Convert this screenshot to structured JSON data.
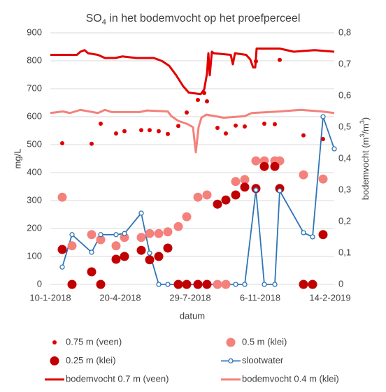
{
  "chart_data": {
    "type": "scatter",
    "title": {
      "main": "SO",
      "sub": "4",
      "rest": " in het bodemvocht op het proefperceel"
    },
    "y_label": "mg/L",
    "y2_label": {
      "main": "bodemvocht (m",
      "sup1": "3",
      "mid": "/m",
      "sup2": "3",
      "end": ")"
    },
    "x_label": "datum",
    "grid": true,
    "xlim": [
      "2018-01-10",
      "2019-02-20"
    ],
    "xticks": [
      {
        "value": "2018-01-10",
        "label": "10-1-2018"
      },
      {
        "value": "2018-04-20",
        "label": "20-4-2018"
      },
      {
        "value": "2018-07-29",
        "label": "29-7-2018"
      },
      {
        "value": "2018-11-06",
        "label": "6-11-2018"
      },
      {
        "value": "2019-02-14",
        "label": "14-2-2019"
      }
    ],
    "ylim": [
      0,
      900
    ],
    "yticks": [
      0,
      100,
      200,
      300,
      400,
      500,
      600,
      700,
      800,
      900
    ],
    "y2lim": [
      0,
      0.8
    ],
    "y2ticks": [
      0,
      {
        "value": 0.1,
        "label": "0,1"
      },
      {
        "value": 0.2,
        "label": "0,2"
      },
      {
        "value": 0.3,
        "label": "0,3"
      },
      {
        "value": 0.4,
        "label": "0,4"
      },
      {
        "value": 0.5,
        "label": "0,5"
      },
      {
        "value": 0.6,
        "label": "0,6"
      },
      {
        "value": 0.7,
        "label": "0,7"
      },
      {
        "value": 0.8,
        "label": "0,8"
      }
    ],
    "series": [
      {
        "name": "0.75 m (veen)",
        "color": "#e00000",
        "mode": "markers",
        "marker": "small-dot",
        "x": [
          "2018-01-27",
          "2018-03-10",
          "2018-03-23",
          "2018-04-14",
          "2018-04-26",
          "2018-05-20",
          "2018-06-01",
          "2018-06-14",
          "2018-06-27",
          "2018-07-12",
          "2018-07-24",
          "2018-08-09",
          "2018-08-18",
          "2018-08-22",
          "2018-09-06",
          "2018-09-18",
          "2018-10-02",
          "2018-10-15",
          "2018-10-31",
          "2018-11-12",
          "2018-11-27",
          "2018-12-04",
          "2019-01-07",
          "2019-02-04"
        ],
        "values": [
          505,
          503,
          575,
          540,
          548,
          552,
          552,
          548,
          538,
          567,
          615,
          660,
          685,
          655,
          560,
          540,
          568,
          565,
          798,
          575,
          573,
          803,
          533,
          520
        ]
      },
      {
        "name": "0.5 m (klei)",
        "color": "#f4817b",
        "mode": "markers",
        "marker": "large-dot",
        "x": [
          "2018-01-27",
          "2018-02-10",
          "2018-03-10",
          "2018-03-23",
          "2018-04-14",
          "2018-04-26",
          "2018-05-20",
          "2018-06-01",
          "2018-06-14",
          "2018-06-27",
          "2018-07-12",
          "2018-07-24",
          "2018-08-09",
          "2018-08-22",
          "2018-09-06",
          "2018-09-18",
          "2018-10-02",
          "2018-10-15",
          "2018-10-31",
          "2018-11-12",
          "2018-11-27",
          "2018-12-04",
          "2019-01-07",
          "2019-02-04"
        ],
        "values": [
          312,
          138,
          178,
          160,
          138,
          168,
          168,
          182,
          182,
          188,
          207,
          242,
          312,
          320,
          0,
          0,
          368,
          375,
          442,
          442,
          442,
          442,
          392,
          377
        ]
      },
      {
        "name": "0.25 m (klei)",
        "color": "#c00000",
        "mode": "markers",
        "marker": "large-dot",
        "x": [
          "2018-01-27",
          "2018-02-10",
          "2018-03-10",
          "2018-03-23",
          "2018-04-14",
          "2018-04-26",
          "2018-05-20",
          "2018-06-01",
          "2018-06-14",
          "2018-06-27",
          "2018-07-12",
          "2018-07-24",
          "2018-08-09",
          "2018-08-22",
          "2018-09-06",
          "2018-09-18",
          "2018-10-02",
          "2018-10-15",
          "2018-10-31",
          "2018-11-12",
          "2018-11-27",
          "2018-12-04",
          "2019-01-07",
          "2019-01-20",
          "2019-02-04"
        ],
        "values": [
          125,
          0,
          45,
          0,
          90,
          100,
          122,
          88,
          100,
          130,
          0,
          0,
          0,
          0,
          287,
          302,
          320,
          348,
          343,
          422,
          422,
          343,
          0,
          0,
          178
        ]
      },
      {
        "name": "slootwater",
        "color": "#2e75b6",
        "mode": "lines+markers",
        "marker": "open-circle",
        "x": [
          "2018-01-27",
          "2018-02-10",
          "2018-03-10",
          "2018-03-23",
          "2018-04-14",
          "2018-04-26",
          "2018-05-20",
          "2018-06-01",
          "2018-06-14",
          "2018-06-27",
          "2018-10-02",
          "2018-10-15",
          "2018-10-31",
          "2018-11-12",
          "2018-11-27",
          "2018-12-04",
          "2019-01-07",
          "2019-01-20",
          "2019-02-04",
          "2019-02-20"
        ],
        "values": [
          62,
          178,
          115,
          178,
          178,
          182,
          255,
          112,
          0,
          0,
          0,
          0,
          338,
          0,
          0,
          335,
          185,
          170,
          600,
          485
        ]
      },
      {
        "name": "bodemvocht 0.7 m (veen)",
        "color": "#e00000",
        "mode": "lines",
        "axis": "y2",
        "x": [
          "2018-01-10",
          "2018-02-17",
          "2018-02-22",
          "2018-02-28",
          "2018-03-05",
          "2018-03-19",
          "2018-03-29",
          "2018-04-13",
          "2018-04-23",
          "2018-05-13",
          "2018-06-07",
          "2018-06-19",
          "2018-06-29",
          "2018-07-09",
          "2018-07-19",
          "2018-07-27",
          "2018-08-13",
          "2018-08-18",
          "2018-08-22",
          "2018-08-24",
          "2018-08-26",
          "2018-08-29",
          "2018-09-01",
          "2018-09-25",
          "2018-09-28",
          "2018-10-01",
          "2018-10-17",
          "2018-10-23",
          "2018-10-27",
          "2018-10-30",
          "2018-11-01",
          "2018-12-04",
          "2018-12-24",
          "2019-01-23",
          "2019-02-20"
        ],
        "values": [
          0.73,
          0.73,
          0.74,
          0.745,
          0.735,
          0.73,
          0.72,
          0.72,
          0.725,
          0.72,
          0.72,
          0.71,
          0.695,
          0.665,
          0.63,
          0.61,
          0.605,
          0.62,
          0.67,
          0.735,
          0.665,
          0.74,
          0.735,
          0.73,
          0.7,
          0.735,
          0.73,
          0.715,
          0.69,
          0.69,
          0.75,
          0.75,
          0.74,
          0.745,
          0.74
        ]
      },
      {
        "name": "bodemvocht 0.4 m (klei)",
        "color": "#f4817b",
        "mode": "lines",
        "axis": "y2",
        "x": [
          "2018-01-10",
          "2018-01-28",
          "2018-02-07",
          "2018-02-22",
          "2018-03-19",
          "2018-03-29",
          "2018-04-08",
          "2018-05-18",
          "2018-05-28",
          "2018-06-27",
          "2018-07-02",
          "2018-07-12",
          "2018-07-25",
          "2018-08-02",
          "2018-08-06",
          "2018-08-10",
          "2018-08-14",
          "2018-08-21",
          "2018-09-15",
          "2018-10-15",
          "2018-10-25",
          "2018-12-04",
          "2019-01-03",
          "2019-02-02",
          "2019-02-20"
        ],
        "values": [
          0.545,
          0.55,
          0.545,
          0.555,
          0.545,
          0.555,
          0.548,
          0.548,
          0.553,
          0.55,
          0.535,
          0.52,
          0.51,
          0.5,
          0.42,
          0.5,
          0.53,
          0.54,
          0.53,
          0.535,
          0.545,
          0.55,
          0.555,
          0.55,
          0.545
        ]
      }
    ]
  }
}
